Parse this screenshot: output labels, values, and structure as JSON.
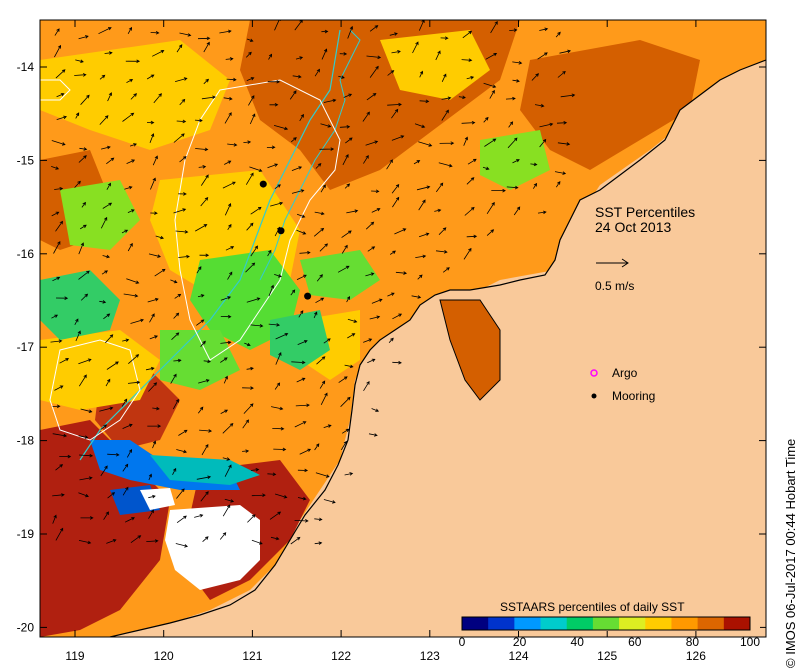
{
  "map": {
    "title_line1": "SST Percentiles",
    "title_line2": "24 Oct 2013",
    "scale_label": "0.5 m/s",
    "legend": {
      "argo_label": "Argo",
      "mooring_label": "Mooring",
      "argo_color": "#ff00ff",
      "mooring_color": "#000000"
    },
    "colorbar": {
      "title": "SSTAARS percentiles of daily SST",
      "ticks": [
        "0",
        "20",
        "40",
        "60",
        "80",
        "100"
      ],
      "colors": [
        "#000080",
        "#0033cc",
        "#0099ff",
        "#00cccc",
        "#00cc66",
        "#66dd33",
        "#ddee22",
        "#ffcc00",
        "#ff9900",
        "#dd6600",
        "#aa1100"
      ]
    },
    "lon_ticks": [
      "119",
      "120",
      "121",
      "122",
      "123",
      "124",
      "125",
      "126"
    ],
    "lat_ticks": [
      "-14",
      "-15",
      "-16",
      "-17",
      "-18",
      "-19",
      "-20"
    ],
    "moorings": [
      {
        "lon": 121.1,
        "lat": -15.2
      },
      {
        "lon": 121.3,
        "lat": -15.7
      },
      {
        "lon": 121.6,
        "lat": -16.4
      }
    ],
    "land_color": "#f9c99a",
    "credit": "IMOS 06-Jul-2017 00:44 Hobart Time",
    "credit_symbol": "©"
  }
}
